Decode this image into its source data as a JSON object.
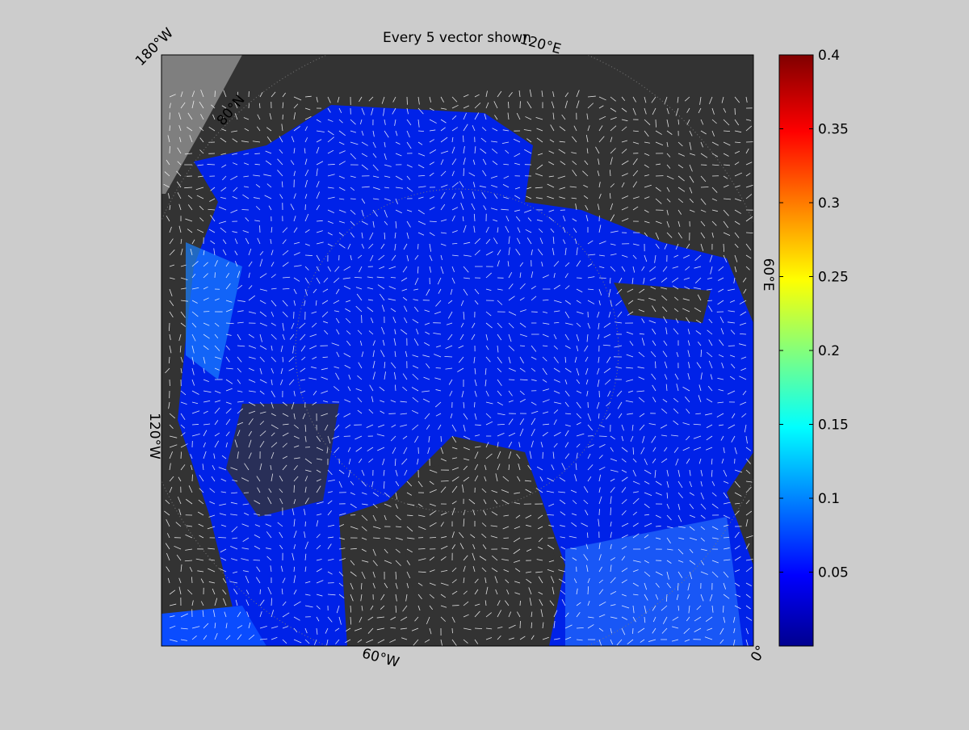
{
  "title": "Every 5 vector shown",
  "colorbar": {
    "lim": [
      0,
      0.4
    ],
    "ticks": [
      0.05,
      0.1,
      0.15,
      0.2,
      0.25,
      0.3,
      0.35,
      0.4
    ]
  },
  "map_labels": {
    "top_left": "180°W",
    "top_right": "120°E",
    "right": "60°E",
    "bottom_right": "0°",
    "bottom": "60°W",
    "left": "120°W",
    "lat": "80°N"
  }
}
